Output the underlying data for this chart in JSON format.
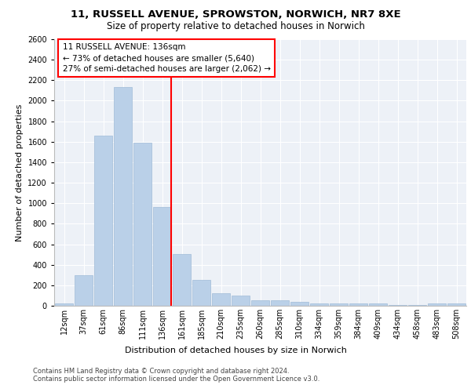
{
  "title_line1": "11, RUSSELL AVENUE, SPROWSTON, NORWICH, NR7 8XE",
  "title_line2": "Size of property relative to detached houses in Norwich",
  "xlabel": "Distribution of detached houses by size in Norwich",
  "ylabel": "Number of detached properties",
  "footnote1": "Contains HM Land Registry data © Crown copyright and database right 2024.",
  "footnote2": "Contains public sector information licensed under the Open Government Licence v3.0.",
  "annotation_title": "11 RUSSELL AVENUE: 136sqm",
  "annotation_line2": "← 73% of detached houses are smaller (5,640)",
  "annotation_line3": "27% of semi-detached houses are larger (2,062) →",
  "bar_color": "#bad0e8",
  "bar_edge_color": "#a0bcd8",
  "ref_line_color": "red",
  "categories": [
    "12sqm",
    "37sqm",
    "61sqm",
    "86sqm",
    "111sqm",
    "136sqm",
    "161sqm",
    "185sqm",
    "210sqm",
    "235sqm",
    "260sqm",
    "285sqm",
    "310sqm",
    "334sqm",
    "359sqm",
    "384sqm",
    "409sqm",
    "434sqm",
    "458sqm",
    "483sqm",
    "508sqm"
  ],
  "values": [
    25,
    300,
    1660,
    2130,
    1590,
    960,
    505,
    250,
    120,
    100,
    50,
    50,
    35,
    20,
    20,
    20,
    20,
    5,
    5,
    20,
    25
  ],
  "ylim": [
    0,
    2600
  ],
  "yticks": [
    0,
    200,
    400,
    600,
    800,
    1000,
    1200,
    1400,
    1600,
    1800,
    2000,
    2200,
    2400,
    2600
  ],
  "background_color": "#edf1f7",
  "grid_color": "white",
  "ref_bar_index": 5,
  "title1_fontsize": 9.5,
  "title2_fontsize": 8.5,
  "ylabel_fontsize": 8,
  "xlabel_fontsize": 8,
  "tick_fontsize": 7,
  "annot_fontsize": 7.5,
  "footnote_fontsize": 6
}
